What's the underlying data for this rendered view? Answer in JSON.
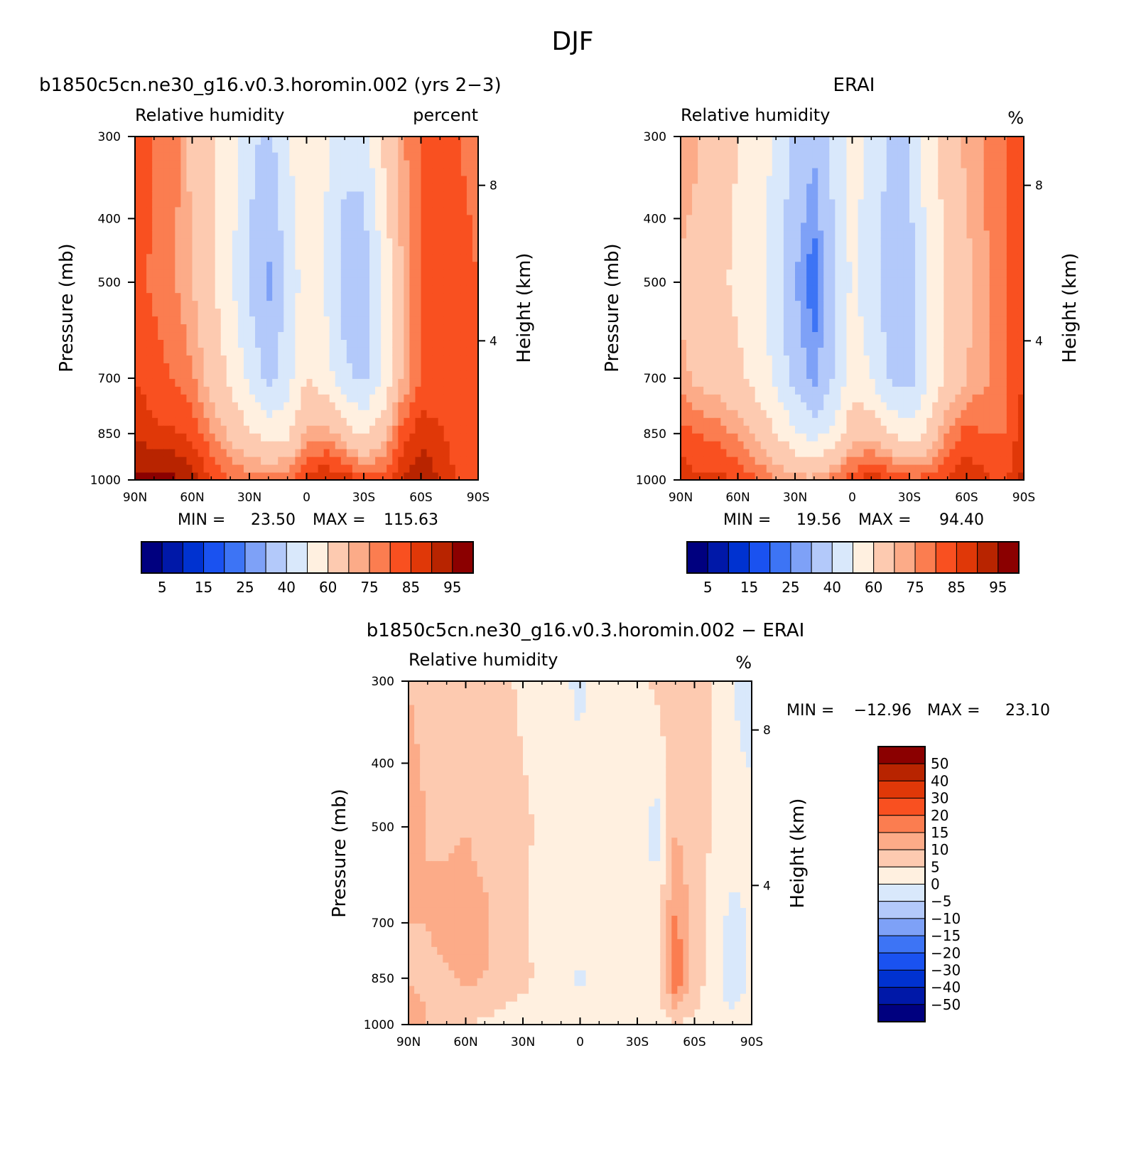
{
  "suptitle": "DJF",
  "colors": {
    "abs_scale": [
      "#00007f",
      "#0018a8",
      "#0032d0",
      "#1a52f0",
      "#3d74f5",
      "#7ea1f7",
      "#b3c9fa",
      "#d9e8fb",
      "#fff0e0",
      "#fdcab0",
      "#fcab88",
      "#fb7d50",
      "#f95020",
      "#e03808",
      "#b82400",
      "#8b0000"
    ],
    "diff_scale": [
      "#00007f",
      "#0018a8",
      "#0032d0",
      "#1a52f0",
      "#3d74f5",
      "#7ea1f7",
      "#b3c9fa",
      "#d9e8fb",
      "#fff0e0",
      "#fdcab0",
      "#fcab88",
      "#fb7d50",
      "#f95020",
      "#e03808",
      "#b82400",
      "#8b0000"
    ]
  },
  "chart_data": [
    {
      "id": "model",
      "type": "heatmap",
      "title": "b1850c5cn.ne30_g16.v0.3.horomin.002 (yrs 2−3)",
      "subtitle_left": "Relative humidity",
      "subtitle_right": "percent",
      "ylabel": "Pressure (mb)",
      "y2label": "Height (km)",
      "xticks": [
        "90N",
        "60N",
        "30N",
        "0",
        "30S",
        "60S",
        "90S"
      ],
      "xtick_values": [
        90,
        60,
        30,
        0,
        -30,
        -60,
        -90
      ],
      "xlim": [
        90,
        -90
      ],
      "yticks": [
        "300",
        "400",
        "500",
        "700",
        "850",
        "1000"
      ],
      "ytick_values": [
        300,
        400,
        500,
        700,
        850,
        1000
      ],
      "ylim": [
        1000,
        300
      ],
      "y2ticks": [
        "8",
        "4"
      ],
      "y2tick_pressures": [
        356,
        614
      ],
      "min_label": "MIN =",
      "min_value": "23.50",
      "max_label": "MAX =",
      "max_value": "115.63",
      "colorbar_labels": [
        "5",
        "15",
        "25",
        "40",
        "60",
        "75",
        "85",
        "95"
      ],
      "base_levels": [
        {
          "lat": 90,
          "p1000": 96,
          "p850": 90,
          "p700": 85,
          "p500": 82,
          "p300": 84
        },
        {
          "lat": 80,
          "p1000": 96,
          "p850": 86,
          "p700": 82,
          "p500": 79,
          "p300": 80
        },
        {
          "lat": 70,
          "p1000": 96,
          "p850": 86,
          "p700": 80,
          "p500": 76,
          "p300": 78
        },
        {
          "lat": 60,
          "p1000": 92,
          "p850": 84,
          "p700": 76,
          "p500": 70,
          "p300": 68
        },
        {
          "lat": 50,
          "p1000": 85,
          "p850": 76,
          "p700": 67,
          "p500": 62,
          "p300": 62
        },
        {
          "lat": 40,
          "p1000": 80,
          "p850": 68,
          "p700": 58,
          "p500": 52,
          "p300": 56
        },
        {
          "lat": 30,
          "p1000": 78,
          "p850": 62,
          "p700": 48,
          "p500": 38,
          "p300": 44
        },
        {
          "lat": 20,
          "p1000": 78,
          "p850": 56,
          "p700": 36,
          "p500": 28,
          "p300": 36
        },
        {
          "lat": 10,
          "p1000": 80,
          "p850": 58,
          "p700": 46,
          "p500": 42,
          "p300": 50
        },
        {
          "lat": 0,
          "p1000": 86,
          "p850": 72,
          "p700": 60,
          "p500": 56,
          "p300": 56
        },
        {
          "lat": -10,
          "p1000": 90,
          "p850": 74,
          "p700": 55,
          "p500": 48,
          "p300": 52
        },
        {
          "lat": -20,
          "p1000": 88,
          "p850": 66,
          "p700": 42,
          "p500": 36,
          "p300": 42
        },
        {
          "lat": -30,
          "p1000": 84,
          "p850": 58,
          "p700": 38,
          "p500": 34,
          "p300": 44
        },
        {
          "lat": -40,
          "p1000": 84,
          "p850": 66,
          "p700": 52,
          "p500": 50,
          "p300": 62
        },
        {
          "lat": -50,
          "p1000": 90,
          "p850": 82,
          "p700": 70,
          "p500": 70,
          "p300": 74
        },
        {
          "lat": -60,
          "p1000": 94,
          "p850": 88,
          "p700": 80,
          "p500": 80,
          "p300": 80
        },
        {
          "lat": -70,
          "p1000": 90,
          "p850": 86,
          "p700": 82,
          "p500": 82,
          "p300": 80
        },
        {
          "lat": -80,
          "p1000": 84,
          "p850": 82,
          "p700": 82,
          "p500": 82,
          "p300": 80
        },
        {
          "lat": -90,
          "p1000": 80,
          "p850": 80,
          "p700": 82,
          "p500": 80,
          "p300": 78
        }
      ]
    },
    {
      "id": "obs",
      "type": "heatmap",
      "title": "ERAI",
      "subtitle_left": "Relative humidity",
      "subtitle_right": "%",
      "ylabel": "Pressure (mb)",
      "y2label": "Height (km)",
      "xticks": [
        "90N",
        "60N",
        "30N",
        "0",
        "30S",
        "60S",
        "90S"
      ],
      "xtick_values": [
        90,
        60,
        30,
        0,
        -30,
        -60,
        -90
      ],
      "xlim": [
        90,
        -90
      ],
      "yticks": [
        "300",
        "400",
        "500",
        "700",
        "850",
        "1000"
      ],
      "ytick_values": [
        300,
        400,
        500,
        700,
        850,
        1000
      ],
      "ylim": [
        1000,
        300
      ],
      "y2ticks": [
        "8",
        "4"
      ],
      "y2tick_pressures": [
        356,
        614
      ],
      "min_label": "MIN =",
      "min_value": "19.56",
      "max_label": "MAX =",
      "max_value": "94.40",
      "colorbar_labels": [
        "5",
        "15",
        "25",
        "40",
        "60",
        "75",
        "85",
        "95"
      ],
      "base_levels": [
        {
          "lat": 90,
          "p1000": 88,
          "p850": 82,
          "p700": 72,
          "p500": 68,
          "p300": 76
        },
        {
          "lat": 80,
          "p1000": 86,
          "p850": 80,
          "p700": 68,
          "p500": 66,
          "p300": 70
        },
        {
          "lat": 70,
          "p1000": 86,
          "p850": 78,
          "p700": 66,
          "p500": 62,
          "p300": 64
        },
        {
          "lat": 60,
          "p1000": 85,
          "p850": 74,
          "p700": 62,
          "p500": 58,
          "p300": 60
        },
        {
          "lat": 50,
          "p1000": 80,
          "p850": 68,
          "p700": 56,
          "p500": 54,
          "p300": 56
        },
        {
          "lat": 40,
          "p1000": 76,
          "p850": 60,
          "p700": 48,
          "p500": 44,
          "p300": 48
        },
        {
          "lat": 30,
          "p1000": 72,
          "p850": 52,
          "p700": 36,
          "p500": 30,
          "p300": 38
        },
        {
          "lat": 20,
          "p1000": 72,
          "p850": 46,
          "p700": 27,
          "p500": 21,
          "p300": 32
        },
        {
          "lat": 10,
          "p1000": 78,
          "p850": 52,
          "p700": 40,
          "p500": 36,
          "p300": 44
        },
        {
          "lat": 0,
          "p1000": 84,
          "p850": 66,
          "p700": 56,
          "p500": 52,
          "p300": 54
        },
        {
          "lat": -10,
          "p1000": 88,
          "p850": 68,
          "p700": 50,
          "p500": 44,
          "p300": 48
        },
        {
          "lat": -20,
          "p1000": 86,
          "p850": 60,
          "p700": 38,
          "p500": 34,
          "p300": 38
        },
        {
          "lat": -30,
          "p1000": 82,
          "p850": 54,
          "p700": 36,
          "p500": 36,
          "p300": 40
        },
        {
          "lat": -40,
          "p1000": 82,
          "p850": 62,
          "p700": 50,
          "p500": 52,
          "p300": 56
        },
        {
          "lat": -50,
          "p1000": 86,
          "p850": 76,
          "p700": 62,
          "p500": 62,
          "p300": 64
        },
        {
          "lat": -60,
          "p1000": 89,
          "p850": 82,
          "p700": 70,
          "p500": 68,
          "p300": 72
        },
        {
          "lat": -70,
          "p1000": 86,
          "p850": 80,
          "p700": 74,
          "p500": 74,
          "p300": 76
        },
        {
          "lat": -80,
          "p1000": 84,
          "p850": 80,
          "p700": 80,
          "p500": 80,
          "p300": 80
        },
        {
          "lat": -90,
          "p1000": 92,
          "p850": 88,
          "p700": 85,
          "p500": 82,
          "p300": 80
        }
      ]
    },
    {
      "id": "diff",
      "type": "heatmap",
      "title": "b1850c5cn.ne30_g16.v0.3.horomin.002 − ERAI",
      "subtitle_left": "Relative humidity",
      "subtitle_right": "%",
      "ylabel": "Pressure (mb)",
      "y2label": "Height (km)",
      "xticks": [
        "90N",
        "60N",
        "30N",
        "0",
        "30S",
        "60S",
        "90S"
      ],
      "xtick_values": [
        90,
        60,
        30,
        0,
        -30,
        -60,
        -90
      ],
      "xlim": [
        90,
        -90
      ],
      "yticks": [
        "300",
        "400",
        "500",
        "700",
        "850",
        "1000"
      ],
      "ytick_values": [
        300,
        400,
        500,
        700,
        850,
        1000
      ],
      "ylim": [
        1000,
        300
      ],
      "y2ticks": [
        "8",
        "4"
      ],
      "y2tick_pressures": [
        356,
        614
      ],
      "min_label": "MIN =",
      "min_value": "−12.96",
      "max_label": "MAX =",
      "max_value": "23.10",
      "colorbar_labels": [
        "50",
        "40",
        "30",
        "20",
        "15",
        "10",
        "5",
        "0",
        "−5",
        "−10",
        "−15",
        "−20",
        "−30",
        "−40",
        "−50"
      ],
      "base_levels": [
        {
          "lat": 90,
          "p1000": 14,
          "p850": 9,
          "p700": 10,
          "p500": 11,
          "p300": 10
        },
        {
          "lat": 80,
          "p1000": 10,
          "p850": 9,
          "p700": 10,
          "p500": 10,
          "p300": 9
        },
        {
          "lat": 70,
          "p1000": 8,
          "p850": 9,
          "p700": 12,
          "p500": 9,
          "p300": 8
        },
        {
          "lat": 60,
          "p1000": 6,
          "p850": 11,
          "p700": 12,
          "p500": 10,
          "p300": 7
        },
        {
          "lat": 50,
          "p1000": 4,
          "p850": 10,
          "p700": 11,
          "p500": 8,
          "p300": 6
        },
        {
          "lat": 40,
          "p1000": 3,
          "p850": 8,
          "p700": 8,
          "p500": 7,
          "p300": 6
        },
        {
          "lat": 30,
          "p1000": 3,
          "p850": 6,
          "p700": 6,
          "p500": 6,
          "p300": 4
        },
        {
          "lat": 20,
          "p1000": 2,
          "p850": 4,
          "p700": 3,
          "p500": 4,
          "p300": 3
        },
        {
          "lat": 10,
          "p1000": 2,
          "p850": 3,
          "p700": 2,
          "p500": 3,
          "p300": 2
        },
        {
          "lat": 0,
          "p1000": 2,
          "p850": -1,
          "p700": 3,
          "p500": 4,
          "p300": -2
        },
        {
          "lat": -10,
          "p1000": 2,
          "p850": 3,
          "p700": 5,
          "p500": 5,
          "p300": 3
        },
        {
          "lat": -20,
          "p1000": 1,
          "p850": 3,
          "p700": 4,
          "p500": 3,
          "p300": 4
        },
        {
          "lat": -30,
          "p1000": 1,
          "p850": 3,
          "p700": 2,
          "p500": 2,
          "p300": 4
        },
        {
          "lat": -40,
          "p1000": 3,
          "p850": 4,
          "p700": 2,
          "p500": -2,
          "p300": 6
        },
        {
          "lat": -50,
          "p1000": 4,
          "p850": 20,
          "p700": 16,
          "p500": 10,
          "p300": 8
        },
        {
          "lat": -60,
          "p1000": 4,
          "p850": 8,
          "p700": 8,
          "p500": 6,
          "p300": 10
        },
        {
          "lat": -70,
          "p1000": 3,
          "p850": 2,
          "p700": 3,
          "p500": 5,
          "p300": 4
        },
        {
          "lat": -80,
          "p1000": 2,
          "p850": -4,
          "p700": -2,
          "p500": 3,
          "p300": 0
        },
        {
          "lat": -90,
          "p1000": 2,
          "p850": 1,
          "p700": 1,
          "p500": 2,
          "p300": -4
        }
      ]
    }
  ]
}
